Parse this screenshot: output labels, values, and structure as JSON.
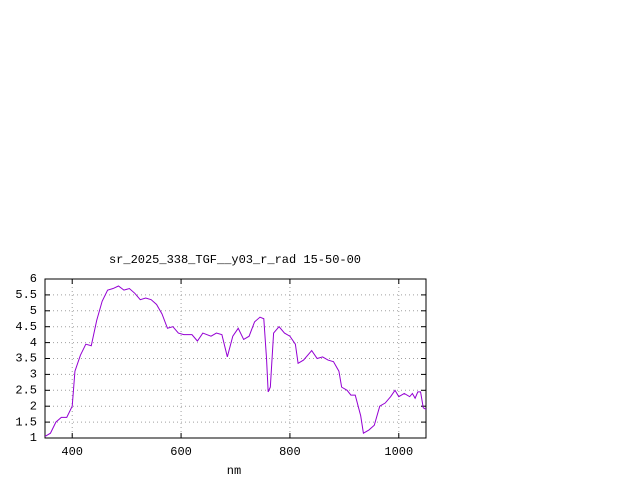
{
  "chart_data": {
    "type": "line",
    "title": "sr_2025_338_TGF__y03_r_rad 15-50-00",
    "xlabel": "nm",
    "x": [
      350,
      360,
      370,
      380,
      390,
      400,
      405,
      415,
      425,
      435,
      445,
      455,
      465,
      475,
      485,
      495,
      505,
      515,
      525,
      535,
      545,
      555,
      565,
      575,
      585,
      595,
      605,
      620,
      630,
      640,
      655,
      665,
      675,
      685,
      695,
      705,
      715,
      725,
      735,
      745,
      752,
      757,
      760,
      764,
      770,
      780,
      790,
      800,
      810,
      815,
      825,
      840,
      850,
      860,
      870,
      880,
      890,
      895,
      905,
      912,
      920,
      930,
      935,
      945,
      955,
      965,
      975,
      985,
      993,
      1000,
      1010,
      1020,
      1025,
      1030,
      1035,
      1040,
      1045,
      1050
    ],
    "series": [
      {
        "color": "#9400d3",
        "values": [
          1.05,
          1.15,
          1.5,
          1.65,
          1.65,
          2.0,
          3.1,
          3.6,
          3.95,
          3.9,
          4.7,
          5.3,
          5.65,
          5.7,
          5.78,
          5.65,
          5.7,
          5.55,
          5.35,
          5.4,
          5.35,
          5.2,
          4.9,
          4.45,
          4.5,
          4.3,
          4.25,
          4.25,
          4.05,
          4.3,
          4.2,
          4.3,
          4.25,
          3.55,
          4.2,
          4.45,
          4.1,
          4.2,
          4.65,
          4.8,
          4.75,
          3.5,
          2.45,
          2.6,
          4.3,
          4.5,
          4.3,
          4.2,
          3.95,
          3.35,
          3.45,
          3.75,
          3.5,
          3.55,
          3.45,
          3.4,
          3.1,
          2.6,
          2.5,
          2.35,
          2.35,
          1.7,
          1.15,
          1.25,
          1.4,
          2.0,
          2.1,
          2.3,
          2.5,
          2.3,
          2.4,
          2.3,
          2.4,
          2.25,
          2.45,
          2.45,
          1.95,
          1.9
        ]
      }
    ],
    "xlim": [
      350,
      1050
    ],
    "xticks": [
      400,
      600,
      800,
      1000
    ],
    "ylim": [
      1,
      6
    ],
    "yticks": [
      1,
      1.5,
      2,
      2.5,
      3,
      3.5,
      4,
      4.5,
      5,
      5.5,
      6
    ],
    "grid": true
  }
}
